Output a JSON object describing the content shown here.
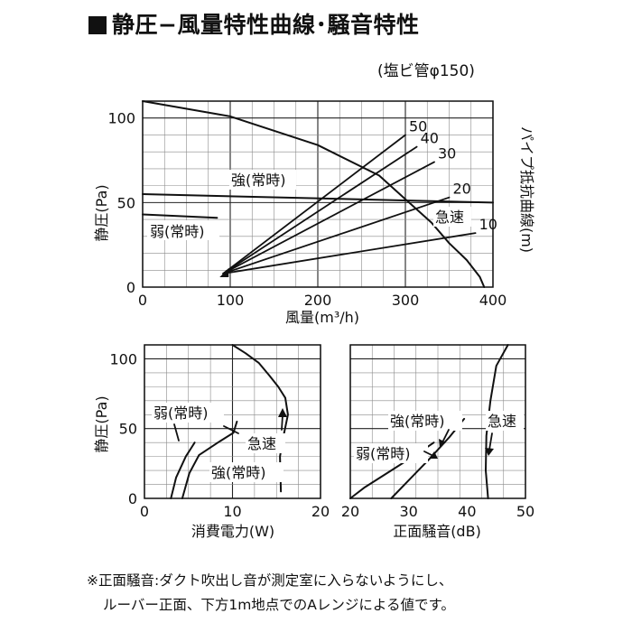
{
  "header": {
    "title": "静圧−風量特性曲線･騒音特性",
    "duct_note": "(塩ビ管φ150)"
  },
  "footnote": {
    "line1": "※正面騒音:ダクト吹出し音が測定室に入らないようにし、",
    "line2": "ルーバー正面、下方1m地点でのAレンジによる値です。"
  },
  "chart_data": [
    {
      "id": "static_pressure_vs_airflow",
      "type": "line",
      "title": "",
      "xlabel": "風量(m³/h)",
      "ylabel": "静圧(Pa)",
      "right_label": "パイプ抵抗曲線(m)",
      "xlim": [
        0,
        400
      ],
      "ylim": [
        0,
        110
      ],
      "x_ticks": [
        "0",
        "100",
        "200",
        "300",
        "400"
      ],
      "y_ticks": [
        "0",
        "50",
        "100"
      ],
      "grid": true,
      "series": [
        {
          "name": "急速",
          "x": [
            0,
            100,
            200,
            270,
            300,
            330,
            350,
            370,
            385,
            390
          ],
          "y": [
            110,
            101,
            84,
            66,
            52,
            38,
            26,
            16,
            6,
            0
          ]
        },
        {
          "name": "強(常時)",
          "x": [
            0,
            400
          ],
          "y": [
            55,
            50
          ]
        },
        {
          "name": "弱(常時)",
          "x": [
            0,
            85
          ],
          "y": [
            43,
            41
          ]
        }
      ],
      "pipe_resistance_curves": [
        {
          "name": "50",
          "x": [
            92,
            300
          ],
          "y": [
            8,
            90
          ]
        },
        {
          "name": "40",
          "x": [
            92,
            313
          ],
          "y": [
            8,
            83
          ]
        },
        {
          "name": "30",
          "x": [
            92,
            333
          ],
          "y": [
            8,
            74
          ]
        },
        {
          "name": "20",
          "x": [
            92,
            350
          ],
          "y": [
            8,
            53
          ]
        },
        {
          "name": "10",
          "x": [
            92,
            380
          ],
          "y": [
            8,
            32
          ]
        }
      ]
    },
    {
      "id": "static_pressure_vs_power",
      "type": "line",
      "title": "",
      "xlabel": "消費電力(W)",
      "ylabel": "静圧(Pa)",
      "xlim": [
        0,
        20
      ],
      "ylim": [
        0,
        110
      ],
      "x_ticks": [
        "0",
        "10",
        "20"
      ],
      "y_ticks": [
        "0",
        "50",
        "100"
      ],
      "grid": true,
      "series": [
        {
          "name": "急速",
          "x": [
            10,
            11.5,
            13,
            14.2,
            15.2,
            16,
            16.3,
            15.8,
            15.4,
            15.5
          ],
          "y": [
            110,
            104,
            97,
            88,
            80,
            72,
            60,
            45,
            30,
            5
          ]
        },
        {
          "name": "強(常時)",
          "x": [
            10.5,
            10.1,
            8.6,
            6.2,
            5.1,
            4.3
          ],
          "y": [
            55,
            47,
            41,
            31,
            18,
            0
          ]
        },
        {
          "name": "弱(常時)",
          "x": [
            5.7,
            5.3,
            4.7,
            3.6,
            3.0
          ],
          "y": [
            40,
            36,
            30,
            15,
            0
          ]
        }
      ]
    },
    {
      "id": "static_pressure_vs_noise",
      "type": "line",
      "title": "",
      "xlabel": "正面騒音(dB)",
      "ylabel": "",
      "xlim": [
        20,
        50
      ],
      "ylim": [
        0,
        110
      ],
      "x_ticks": [
        "20",
        "30",
        "40",
        "50"
      ],
      "grid": true,
      "series": [
        {
          "name": "急速",
          "x": [
            47,
            45,
            44,
            43.3,
            43.2,
            43.6
          ],
          "y": [
            110,
            95,
            70,
            45,
            20,
            0
          ]
        },
        {
          "name": "強(常時)",
          "x": [
            39.5,
            37,
            33.5,
            30,
            27
          ],
          "y": [
            57,
            44,
            28,
            13,
            0
          ]
        },
        {
          "name": "弱(常時)",
          "x": [
            34.3,
            31.5,
            27,
            22.5,
            20
          ],
          "y": [
            40,
            32,
            20,
            8,
            0
          ]
        }
      ]
    }
  ],
  "labels": {
    "main_kyuusoku": "急速",
    "main_kyou": "強(常時)",
    "main_jaku": "弱(常時)",
    "power_kyuusoku": "急速",
    "power_kyou": "強(常時)",
    "power_jaku": "弱(常時)",
    "noise_kyuusoku": "急速",
    "noise_kyou": "強(常時)",
    "noise_jaku": "弱(常時)"
  }
}
